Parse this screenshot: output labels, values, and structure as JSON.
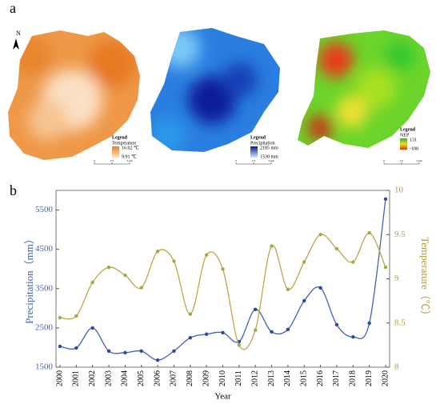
{
  "panel_labels": {
    "a": "a",
    "b": "b"
  },
  "north": "N",
  "maps": [
    {
      "legend": "Legend",
      "variable": "Temperature",
      "high": "16.02 ℃",
      "low": "9.91 ℃",
      "scale": [
        "0",
        "2.5",
        "5 km"
      ]
    },
    {
      "legend": "Legend",
      "variable": "Precipitation",
      "high": "2185 mm",
      "low": "1530 mm",
      "scale": [
        "0",
        "2.5",
        "5 km"
      ]
    },
    {
      "legend": "Legend",
      "variable": "NEP",
      "high": "131",
      "low": "-108",
      "scale": [
        "0",
        "2.5",
        "5 km"
      ]
    }
  ],
  "chart_data": {
    "type": "line",
    "x_label": "Year",
    "y_label": "Precipitation（mm）",
    "y2_label": "Temperature（℃）",
    "categories": [
      "2000",
      "2001",
      "2002",
      "2003",
      "2004",
      "2005",
      "2006",
      "2007",
      "2008",
      "2009",
      "2010",
      "2011",
      "2012",
      "2013",
      "2014",
      "2015",
      "2016",
      "2017",
      "2018",
      "2019",
      "2020"
    ],
    "ylim": [
      1500,
      6000
    ],
    "yticks": [
      1500,
      2500,
      3500,
      4500,
      5500
    ],
    "y2lim": [
      8,
      10
    ],
    "y2ticks": [
      8,
      8.5,
      9,
      9.5,
      10
    ],
    "series": [
      {
        "color": "#3d62b8",
        "marker_color": "#2a4a9e",
        "values": [
          2030,
          1990,
          2500,
          1910,
          1870,
          1910,
          1680,
          1910,
          2250,
          2340,
          2380,
          2150,
          2970,
          2400,
          2460,
          3190,
          3520,
          2580,
          2270,
          2620,
          5780
        ]
      },
      {
        "color": "#c2a448",
        "marker_color": "#98b040",
        "axis": "y2",
        "values": [
          8.56,
          8.58,
          8.96,
          9.13,
          9.04,
          8.9,
          9.31,
          9.2,
          8.6,
          9.27,
          9.11,
          8.25,
          8.42,
          9.37,
          8.88,
          9.19,
          9.5,
          9.34,
          9.19,
          9.52,
          9.13
        ]
      }
    ]
  }
}
